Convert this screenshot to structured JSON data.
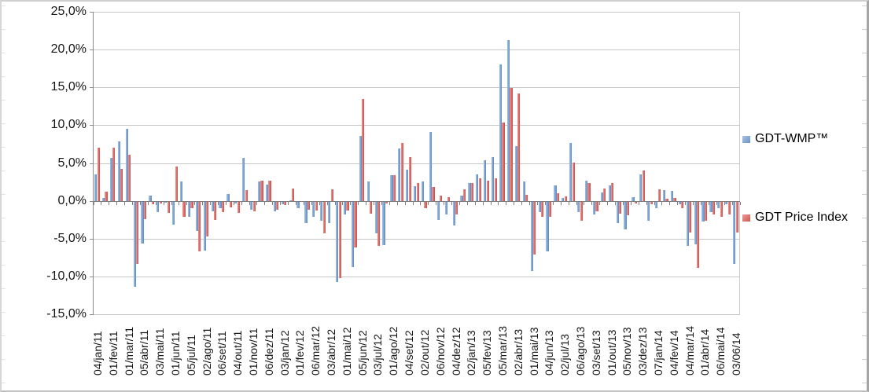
{
  "legend": {
    "position": "right",
    "items": [
      {
        "label": "GDT-WMP™",
        "color": "#7ba3d4"
      },
      {
        "label": "GDT Price Index",
        "color": "#dd6a66"
      }
    ]
  },
  "chart_data": {
    "type": "bar",
    "title": "",
    "xlabel": "",
    "ylabel": "",
    "ylim": [
      -15,
      25
    ],
    "ytick_step": 5,
    "ytick_labels": [
      "25,0%",
      "20,0%",
      "15,0%",
      "10,0%",
      "5,0%",
      "0,0%",
      "-5,0%",
      "-10,0%",
      "-15,0%"
    ],
    "grid": true,
    "legend_position": "right",
    "x_tick_labels": [
      "04/jan/11",
      "01/fev/11",
      "01/mar/11",
      "05/abr/11",
      "03/mai/11",
      "01/jun/11",
      "05/jul/11",
      "02/ago/11",
      "06/set/11",
      "04/out/11",
      "01/nov/11",
      "06/dez/11",
      "03/jan/12",
      "01/fev/12",
      "06/mar/12",
      "03/abr/12",
      "01/mai/12",
      "05/jun/12",
      "03/jul/12",
      "01/ago/12",
      "04/set/12",
      "02/out/12",
      "06/nov/12",
      "04/dez/12",
      "02/jan/13",
      "05/fev/13",
      "05/mar/13",
      "02/abr/13",
      "01/mai/13",
      "04/jun/13",
      "02/jul/13",
      "06/ago/13",
      "03/set/13",
      "01/out/13",
      "05/nov/13",
      "03/dez/13",
      "07/jan/14",
      "04/fev/14",
      "04/mar/14",
      "01/abr/14",
      "06/mai/14",
      "03/06/14"
    ],
    "label_every_n_groups": 2,
    "series": [
      {
        "name": "GDT-WMP™",
        "color": "#7ba3d4",
        "values": [
          3.5,
          0.4,
          5.7,
          7.9,
          9.5,
          -11.4,
          -5.7,
          0.7,
          -1.5,
          -0.2,
          -3.2,
          2.6,
          -2.1,
          -4.0,
          -6.6,
          -1.4,
          -1.0,
          0.9,
          -0.4,
          5.7,
          -1.2,
          2.6,
          2.1,
          -1.4,
          -0.5,
          0.1,
          -1.0,
          -2.9,
          -2.1,
          -2.6,
          -2.9,
          -10.7,
          -1.8,
          -8.8,
          8.6,
          2.6,
          -4.3,
          -5.9,
          3.4,
          6.9,
          4.1,
          1.9,
          2.6,
          9.1,
          -2.5,
          -1.8,
          -3.3,
          0.7,
          2.4,
          3.5,
          5.4,
          5.8,
          18.0,
          21.3,
          7.2,
          2.6,
          -9.3,
          -1.5,
          -6.7,
          2.0,
          0.4,
          7.7,
          -1.5,
          2.7,
          -1.8,
          1.1,
          2.0,
          -2.9,
          -3.8,
          0.5,
          3.5,
          -2.6,
          -1.0,
          1.4,
          1.3,
          -0.5,
          -6.0,
          -5.8,
          -2.7,
          -1.5,
          -1.0,
          -0.5,
          -8.3
        ]
      },
      {
        "name": "GDT Price Index",
        "color": "#dd6a66",
        "values": [
          7.0,
          1.2,
          7.0,
          4.2,
          6.1,
          -8.3,
          -2.4,
          -0.5,
          -0.3,
          -1.6,
          4.5,
          -2.1,
          -1.0,
          -6.7,
          -4.7,
          -2.5,
          -1.5,
          -0.9,
          -1.6,
          1.4,
          -1.4,
          2.7,
          2.7,
          -1.2,
          -0.6,
          1.6,
          -0.1,
          -1.2,
          -1.3,
          -4.3,
          1.5,
          -10.2,
          -1.3,
          -6.2,
          13.5,
          -1.7,
          -6.0,
          -0.4,
          3.4,
          7.7,
          5.8,
          2.3,
          -1.0,
          1.8,
          0.7,
          0.5,
          -1.8,
          1.5,
          2.3,
          3.0,
          2.7,
          3.0,
          10.4,
          14.9,
          14.2,
          0.8,
          -7.1,
          -2.1,
          -2.1,
          1.0,
          0.6,
          5.1,
          -2.6,
          2.3,
          -1.4,
          1.6,
          2.3,
          -1.7,
          -1.9,
          -0.3,
          4.0,
          -0.5,
          1.5,
          0.3,
          0.4,
          -1.0,
          -4.2,
          -8.9,
          -2.6,
          -1.8,
          -2.1,
          -1.8,
          -4.2
        ]
      }
    ]
  }
}
